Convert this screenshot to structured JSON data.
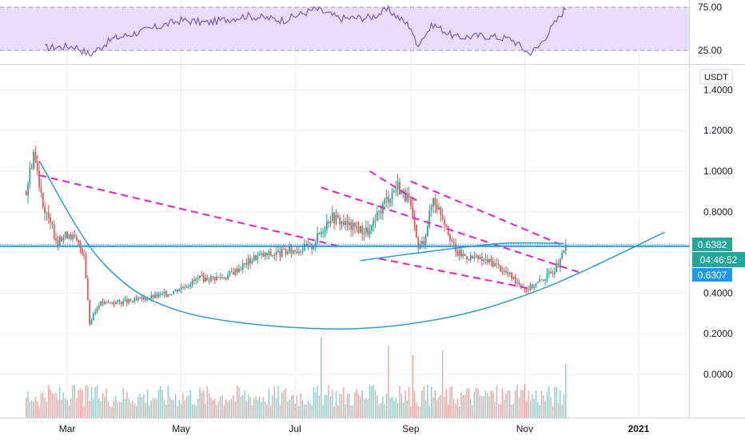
{
  "currency_label": "USDT",
  "price_axis": {
    "labels": [
      "1.4000",
      "1.2000",
      "1.0000",
      "0.8000",
      "0.4000",
      "0.2000",
      "0.0000"
    ],
    "values": [
      1.4,
      1.2,
      1.0,
      0.8,
      0.4,
      0.2,
      0.0
    ],
    "hidden_value": 0.6
  },
  "rsi_axis": {
    "labels": [
      "75.00",
      "25.00"
    ],
    "values": [
      75,
      25
    ]
  },
  "time_axis": {
    "labels": [
      "Mar",
      "May",
      "Jul",
      "Sep",
      "Nov",
      "2021"
    ],
    "bold_label": "2021"
  },
  "last_price": {
    "label": "0.6382",
    "value": 0.6382,
    "color": "#26a69a"
  },
  "countdown": {
    "label": "04:46:52"
  },
  "horizontal_level": {
    "label": "0.6307",
    "value": 0.6307,
    "color": "#2196f3"
  },
  "colors": {
    "up": "#26a69a",
    "down": "#ef5350",
    "trendline": "#e91ec8",
    "curve": "#2e9bd6",
    "rsi_line": "#7e57c2",
    "rsi_band": "#e9dcfb",
    "grid": "#ebedf1",
    "axis_text": "#131722"
  },
  "chart_data": {
    "type": "candlestick",
    "x_range": [
      "2020-01-25",
      "2021-01-28"
    ],
    "ylim": [
      -0.16,
      1.6
    ],
    "key_prices": [
      {
        "date": "2020-02-08",
        "value": 0.9
      },
      {
        "date": "2020-02-12",
        "value": 1.1
      },
      {
        "date": "2020-02-18",
        "value": 0.8
      },
      {
        "date": "2020-02-25",
        "value": 0.65
      },
      {
        "date": "2020-03-02",
        "value": 0.7
      },
      {
        "date": "2020-03-10",
        "value": 0.6
      },
      {
        "date": "2020-03-13",
        "value": 0.25
      },
      {
        "date": "2020-03-18",
        "value": 0.35
      },
      {
        "date": "2020-04-05",
        "value": 0.36
      },
      {
        "date": "2020-04-25",
        "value": 0.4
      },
      {
        "date": "2020-05-10",
        "value": 0.47
      },
      {
        "date": "2020-05-25",
        "value": 0.48
      },
      {
        "date": "2020-06-10",
        "value": 0.58
      },
      {
        "date": "2020-06-25",
        "value": 0.6
      },
      {
        "date": "2020-07-10",
        "value": 0.63
      },
      {
        "date": "2020-07-20",
        "value": 0.78
      },
      {
        "date": "2020-07-30",
        "value": 0.73
      },
      {
        "date": "2020-08-10",
        "value": 0.7
      },
      {
        "date": "2020-08-18",
        "value": 0.85
      },
      {
        "date": "2020-08-25",
        "value": 0.93
      },
      {
        "date": "2020-08-31",
        "value": 0.85
      },
      {
        "date": "2020-09-05",
        "value": 0.62
      },
      {
        "date": "2020-09-08",
        "value": 0.66
      },
      {
        "date": "2020-09-13",
        "value": 0.87
      },
      {
        "date": "2020-09-20",
        "value": 0.74
      },
      {
        "date": "2020-09-25",
        "value": 0.6
      },
      {
        "date": "2020-10-05",
        "value": 0.57
      },
      {
        "date": "2020-10-15",
        "value": 0.55
      },
      {
        "date": "2020-10-25",
        "value": 0.48
      },
      {
        "date": "2020-11-02",
        "value": 0.42
      },
      {
        "date": "2020-11-08",
        "value": 0.45
      },
      {
        "date": "2020-11-15",
        "value": 0.5
      },
      {
        "date": "2020-11-20",
        "value": 0.55
      },
      {
        "date": "2020-11-23",
        "value": 0.6382
      }
    ],
    "rsi_key_points": [
      {
        "date": "2020-02-18",
        "value": 28
      },
      {
        "date": "2020-03-05",
        "value": 30
      },
      {
        "date": "2020-03-13",
        "value": 20
      },
      {
        "date": "2020-03-25",
        "value": 38
      },
      {
        "date": "2020-04-15",
        "value": 50
      },
      {
        "date": "2020-05-01",
        "value": 60
      },
      {
        "date": "2020-05-15",
        "value": 57
      },
      {
        "date": "2020-06-05",
        "value": 65
      },
      {
        "date": "2020-06-25",
        "value": 60
      },
      {
        "date": "2020-07-12",
        "value": 73
      },
      {
        "date": "2020-07-25",
        "value": 62
      },
      {
        "date": "2020-08-10",
        "value": 63
      },
      {
        "date": "2020-08-20",
        "value": 72
      },
      {
        "date": "2020-09-01",
        "value": 52
      },
      {
        "date": "2020-09-04",
        "value": 31
      },
      {
        "date": "2020-09-13",
        "value": 55
      },
      {
        "date": "2020-09-25",
        "value": 40
      },
      {
        "date": "2020-10-10",
        "value": 42
      },
      {
        "date": "2020-10-25",
        "value": 38
      },
      {
        "date": "2020-11-03",
        "value": 22
      },
      {
        "date": "2020-11-08",
        "value": 28
      },
      {
        "date": "2020-11-15",
        "value": 50
      },
      {
        "date": "2020-11-23",
        "value": 74
      }
    ],
    "volume_key_points": [
      {
        "date": "2020-07-15",
        "value": 0.9
      },
      {
        "date": "2020-08-20",
        "value": 0.8
      },
      {
        "date": "2020-09-02",
        "value": 0.7
      },
      {
        "date": "2020-09-18",
        "value": 0.75
      },
      {
        "date": "2020-11-23",
        "value": 0.6
      }
    ],
    "trendlines": [
      {
        "name": "upper-descending",
        "start": {
          "date": "2020-02-15",
          "value": 0.98
        },
        "end": {
          "date": "2020-07-25",
          "value": 0.63
        }
      },
      {
        "name": "channel-upper",
        "start": {
          "date": "2020-09-01",
          "value": 0.95
        },
        "end": {
          "date": "2020-11-20",
          "value": 0.64
        }
      },
      {
        "name": "channel-lower",
        "start": {
          "date": "2020-07-15",
          "value": 0.92
        },
        "end": {
          "date": "2020-12-01",
          "value": 0.5
        }
      },
      {
        "name": "upper-short",
        "start": {
          "date": "2020-08-10",
          "value": 1.0
        },
        "end": {
          "date": "2020-09-05",
          "value": 0.85
        }
      },
      {
        "name": "lower-short",
        "start": {
          "date": "2020-08-15",
          "value": 0.57
        },
        "end": {
          "date": "2020-11-05",
          "value": 0.42
        }
      }
    ],
    "rounding_bottom": [
      {
        "date": "2020-02-15",
        "value": 1.05
      },
      {
        "date": "2020-03-20",
        "value": 0.55
      },
      {
        "date": "2020-05-01",
        "value": 0.31
      },
      {
        "date": "2020-07-15",
        "value": 0.225
      },
      {
        "date": "2020-09-15",
        "value": 0.27
      },
      {
        "date": "2020-11-10",
        "value": 0.42
      },
      {
        "date": "2021-01-15",
        "value": 0.7
      }
    ],
    "curve_short": [
      {
        "date": "2020-08-05",
        "value": 0.56
      },
      {
        "date": "2020-09-15",
        "value": 0.61
      },
      {
        "date": "2020-10-20",
        "value": 0.645
      },
      {
        "date": "2020-11-22",
        "value": 0.645
      }
    ]
  }
}
